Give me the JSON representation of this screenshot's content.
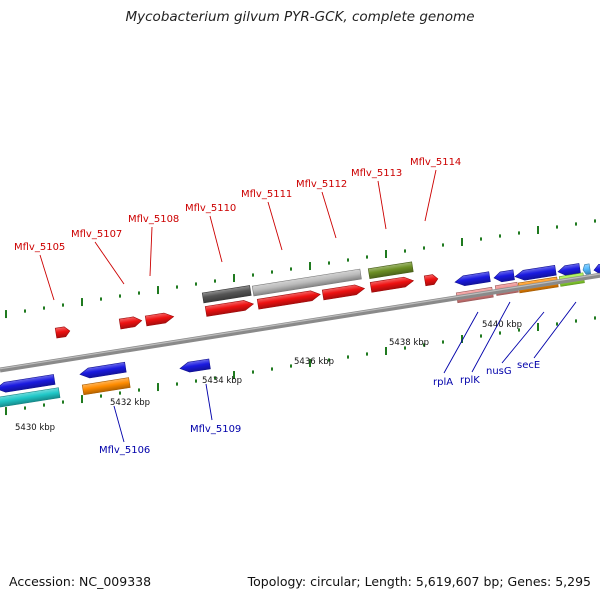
{
  "title": "Mycobacterium gilvum PYR-GCK, complete genome",
  "footer": {
    "accession": "Accession: NC_009338",
    "stats": "Topology: circular; Length: 5,619,607 bp; Genes: 5,295"
  },
  "scale": {
    "ticks": [
      {
        "label": "5430 kbp",
        "kbp": 5430
      },
      {
        "label": "5432 kbp",
        "kbp": 5432
      },
      {
        "label": "5434 kbp",
        "kbp": 5434
      },
      {
        "label": "5436 kbp",
        "kbp": 5436
      },
      {
        "label": "5438 kbp",
        "kbp": 5438
      },
      {
        "label": "5440 kbp",
        "kbp": 5440
      }
    ]
  },
  "colors": {
    "red": "#ee1111",
    "blue": "#1a1ae0",
    "orange": "#ff8c00",
    "cyan": "#20c8c8",
    "dark_gray": "#555555",
    "light_gray": "#bbbbbb",
    "olive": "#6b8e23",
    "pink": "#ee8888",
    "yellow_green": "#99ee33",
    "light_blue": "#55bbff",
    "backbone": "#8a8a8a",
    "tick_green": "#1f7a1f",
    "label_red": "#cc0000",
    "label_blue": "#0000aa"
  },
  "genes": [
    {
      "label": "Mflv_5105",
      "strand": "forward",
      "color": "red"
    },
    {
      "label": "Mflv_5106",
      "strand": "reverse",
      "color": "orange"
    },
    {
      "label": "Mflv_5107",
      "strand": "forward",
      "color": "red"
    },
    {
      "label": "Mflv_5108",
      "strand": "forward",
      "color": "red"
    },
    {
      "label": "Mflv_5109",
      "strand": "reverse",
      "color": "blue"
    },
    {
      "label": "Mflv_5110",
      "strand": "forward",
      "color": "red"
    },
    {
      "label": "Mflv_5111",
      "strand": "forward",
      "color": "red"
    },
    {
      "label": "Mflv_5112",
      "strand": "forward",
      "color": "red"
    },
    {
      "label": "Mflv_5113",
      "strand": "forward",
      "color": "red"
    },
    {
      "label": "Mflv_5114",
      "strand": "forward",
      "color": "red"
    },
    {
      "label": "rplA",
      "strand": "reverse",
      "color": "pink"
    },
    {
      "label": "rplK",
      "strand": "reverse",
      "color": "pink"
    },
    {
      "label": "nusG",
      "strand": "reverse",
      "color": "orange"
    },
    {
      "label": "secE",
      "strand": "reverse",
      "color": "yellow_green"
    }
  ]
}
